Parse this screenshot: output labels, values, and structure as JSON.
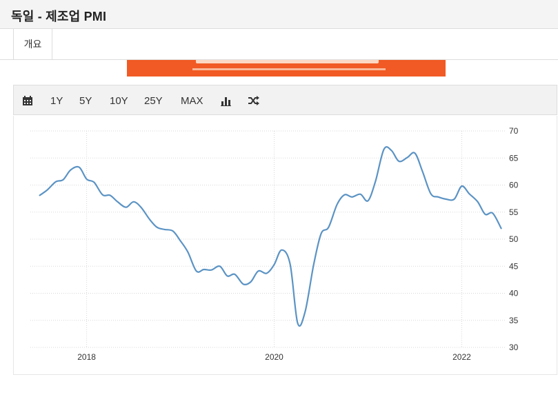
{
  "page": {
    "title": "독일 - 제조업 PMI"
  },
  "tabs": [
    {
      "label": "개요"
    }
  ],
  "toolbar": {
    "items": [
      {
        "name": "calendar-icon",
        "label": ""
      },
      {
        "name": "range-1y",
        "label": "1Y"
      },
      {
        "name": "range-5y",
        "label": "5Y"
      },
      {
        "name": "range-10y",
        "label": "10Y"
      },
      {
        "name": "range-25y",
        "label": "25Y"
      },
      {
        "name": "range-max",
        "label": "MAX"
      },
      {
        "name": "bar-chart-icon",
        "label": ""
      },
      {
        "name": "shuffle-icon",
        "label": ""
      }
    ]
  },
  "colors": {
    "line": "#5b93c4",
    "banner": "#f15a24",
    "grid": "#d7d7d7"
  },
  "chart_data": {
    "type": "line",
    "title": "",
    "xlabel": "",
    "ylabel": "",
    "grid": true,
    "ylim": [
      30,
      70
    ],
    "y_ticks": [
      30,
      35,
      40,
      45,
      50,
      55,
      60,
      65,
      70
    ],
    "x_ticks": [
      "2018",
      "2020",
      "2022"
    ],
    "xlim": [
      2017.4,
      2022.46
    ],
    "series": [
      {
        "name": "",
        "x": [
          2017.5,
          2017.58,
          2017.67,
          2017.75,
          2017.83,
          2017.92,
          2018.0,
          2018.08,
          2018.17,
          2018.25,
          2018.33,
          2018.42,
          2018.5,
          2018.58,
          2018.67,
          2018.75,
          2018.83,
          2018.92,
          2019.0,
          2019.08,
          2019.17,
          2019.25,
          2019.33,
          2019.42,
          2019.5,
          2019.58,
          2019.67,
          2019.75,
          2019.83,
          2019.92,
          2020.0,
          2020.08,
          2020.17,
          2020.25,
          2020.33,
          2020.42,
          2020.5,
          2020.58,
          2020.67,
          2020.75,
          2020.83,
          2020.92,
          2021.0,
          2021.08,
          2021.17,
          2021.25,
          2021.33,
          2021.42,
          2021.5,
          2021.58,
          2021.67,
          2021.75,
          2021.83,
          2021.92,
          2022.0,
          2022.08,
          2022.17,
          2022.25,
          2022.33,
          2022.42
        ],
        "values": [
          58.1,
          59.1,
          60.6,
          61.0,
          62.8,
          63.3,
          61.1,
          60.5,
          58.2,
          58.1,
          56.9,
          55.9,
          56.9,
          55.9,
          53.7,
          52.2,
          51.8,
          51.5,
          49.7,
          47.6,
          44.1,
          44.4,
          44.3,
          45.0,
          43.2,
          43.5,
          41.7,
          42.1,
          44.1,
          43.7,
          45.3,
          48.0,
          45.4,
          34.5,
          36.6,
          45.2,
          51.0,
          52.2,
          56.4,
          58.2,
          57.8,
          58.3,
          57.1,
          60.7,
          66.6,
          66.4,
          64.4,
          65.1,
          65.9,
          62.6,
          58.4,
          57.8,
          57.4,
          57.4,
          59.8,
          58.4,
          56.9,
          54.6,
          54.8,
          52.0
        ]
      }
    ]
  }
}
